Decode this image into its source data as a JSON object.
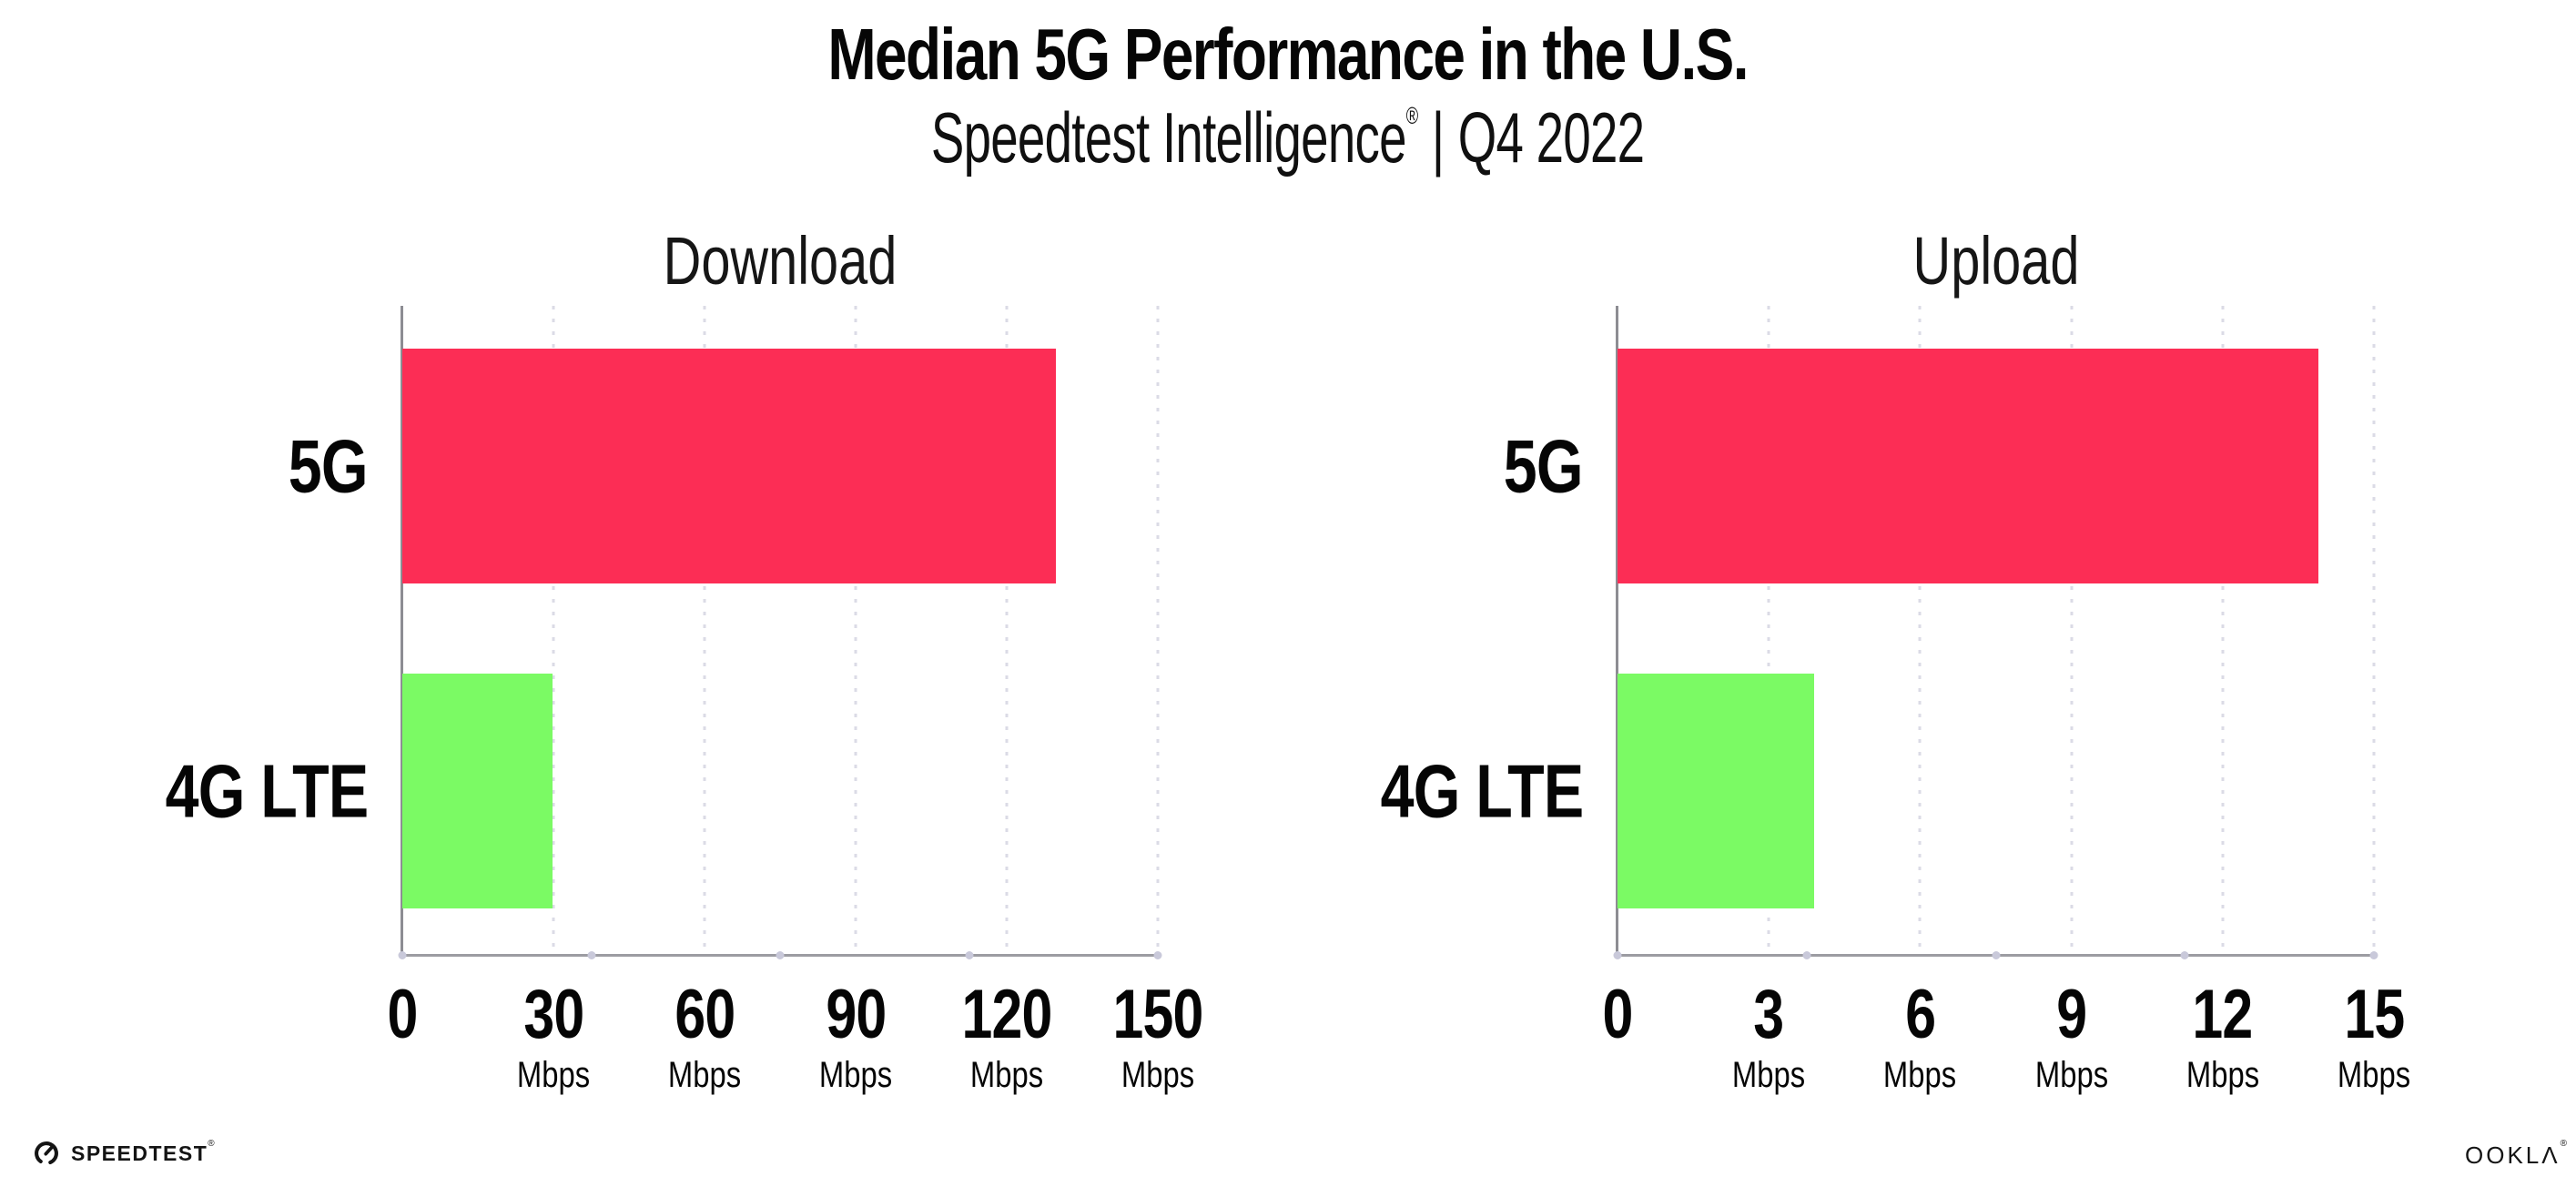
{
  "header": {
    "title": "Median 5G Performance in the U.S.",
    "subtitle_brand": "Speedtest Intelligence",
    "subtitle_reg_mark": "®",
    "subtitle_separator": "|",
    "subtitle_period": "Q4 2022"
  },
  "colors": {
    "bar_5g": "#FC2D55",
    "bar_4g_lte": "#7BFA64",
    "gridline_dots": "#DBDBE6",
    "axis_line": "#9C9CA2",
    "axis_left_spine": "#8D8D93",
    "axis_tick_dots": "#C9C9DA",
    "text": "#050505",
    "background": "#FFFFFF"
  },
  "chart_data": [
    {
      "type": "bar",
      "orientation": "horizontal",
      "title": "Download",
      "categories": [
        "5G",
        "4G LTE"
      ],
      "values": [
        129.8,
        29.9
      ],
      "value_unit": "Mbps",
      "xlim": [
        0,
        150
      ],
      "bar_colors": [
        "#FC2D55",
        "#7BFA64"
      ],
      "gridlines_at": [
        30,
        60,
        90,
        120,
        150
      ],
      "grid_style": "dotted-vertical",
      "legend": "none",
      "x_ticks": [
        {
          "value": 0,
          "label": "0",
          "unit": ""
        },
        {
          "value": 30,
          "label": "30",
          "unit": "Mbps"
        },
        {
          "value": 60,
          "label": "60",
          "unit": "Mbps"
        },
        {
          "value": 90,
          "label": "90",
          "unit": "Mbps"
        },
        {
          "value": 120,
          "label": "120",
          "unit": "Mbps"
        },
        {
          "value": 150,
          "label": "150",
          "unit": "Mbps"
        }
      ]
    },
    {
      "type": "bar",
      "orientation": "horizontal",
      "title": "Upload",
      "categories": [
        "5G",
        "4G LTE"
      ],
      "values": [
        13.9,
        3.9
      ],
      "value_unit": "Mbps",
      "xlim": [
        0,
        15
      ],
      "bar_colors": [
        "#FC2D55",
        "#7BFA64"
      ],
      "gridlines_at": [
        3,
        6,
        9,
        12,
        15
      ],
      "grid_style": "dotted-vertical",
      "legend": "none",
      "x_ticks": [
        {
          "value": 0,
          "label": "0",
          "unit": ""
        },
        {
          "value": 3,
          "label": "3",
          "unit": "Mbps"
        },
        {
          "value": 6,
          "label": "6",
          "unit": "Mbps"
        },
        {
          "value": 9,
          "label": "9",
          "unit": "Mbps"
        },
        {
          "value": 12,
          "label": "12",
          "unit": "Mbps"
        },
        {
          "value": 15,
          "label": "15",
          "unit": "Mbps"
        }
      ]
    }
  ],
  "footer": {
    "speedtest_logo_text": "SPEEDTEST",
    "speedtest_reg_mark": "®",
    "ookla_logo_text": "OOKLΛ",
    "ookla_reg_mark": "®"
  }
}
